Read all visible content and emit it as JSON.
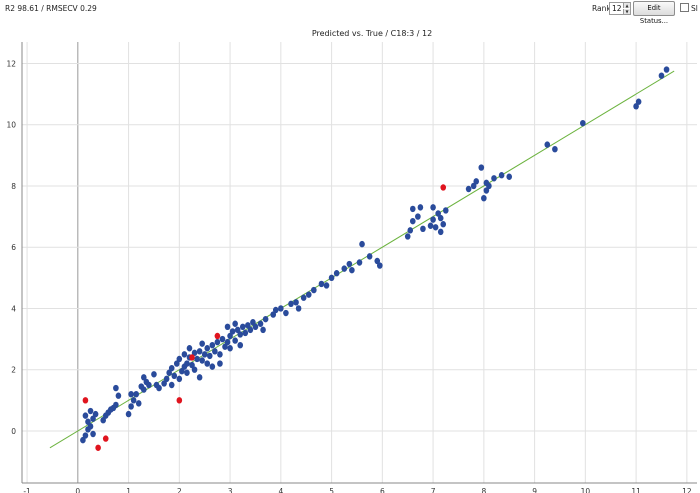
{
  "header": {
    "stats": "R2 98.61 / RMSECV 0.29",
    "rank_label": "Rank:",
    "rank_value": "12",
    "edit_button": "Edit Status...",
    "checkbox_label": "Sl"
  },
  "colors": {
    "blue": "#2a4b9b",
    "red": "#e0141e",
    "fit": "#6cb33f",
    "grid": "#e1e1e1",
    "axis": "#888888"
  },
  "chart_data": {
    "type": "scatter",
    "title": "Predicted vs. True / C18:3 / 12",
    "xlabel": "",
    "ylabel": "",
    "xlim": [
      -1.1,
      12.2
    ],
    "ylim": [
      -1.7,
      12.7
    ],
    "xticks": [
      -1,
      0,
      1,
      2,
      3,
      4,
      5,
      6,
      7,
      8,
      9,
      10,
      11,
      12
    ],
    "yticks": [
      0,
      2,
      4,
      6,
      8,
      10,
      12
    ],
    "grid": true,
    "fit_line": {
      "x": [
        -0.55,
        11.75
      ],
      "y": [
        -0.55,
        11.75
      ]
    },
    "series": [
      {
        "color_key": "blue",
        "points": [
          [
            0.1,
            -0.3
          ],
          [
            0.15,
            -0.15
          ],
          [
            0.2,
            0.05
          ],
          [
            0.25,
            0.15
          ],
          [
            0.2,
            0.3
          ],
          [
            0.3,
            0.4
          ],
          [
            0.35,
            0.55
          ],
          [
            0.25,
            0.65
          ],
          [
            0.15,
            0.5
          ],
          [
            0.3,
            -0.1
          ],
          [
            0.5,
            0.35
          ],
          [
            0.55,
            0.5
          ],
          [
            0.65,
            0.7
          ],
          [
            0.75,
            0.85
          ],
          [
            0.8,
            1.15
          ],
          [
            0.75,
            1.4
          ],
          [
            0.7,
            0.75
          ],
          [
            0.6,
            0.6
          ],
          [
            1.0,
            0.55
          ],
          [
            1.05,
            0.8
          ],
          [
            1.1,
            1.0
          ],
          [
            1.15,
            1.2
          ],
          [
            1.2,
            0.9
          ],
          [
            1.25,
            1.45
          ],
          [
            1.3,
            1.35
          ],
          [
            1.35,
            1.6
          ],
          [
            1.3,
            1.75
          ],
          [
            1.05,
            1.2
          ],
          [
            1.4,
            1.5
          ],
          [
            1.5,
            1.85
          ],
          [
            1.55,
            1.5
          ],
          [
            1.6,
            1.4
          ],
          [
            1.7,
            1.55
          ],
          [
            1.75,
            1.7
          ],
          [
            1.8,
            1.9
          ],
          [
            1.85,
            2.05
          ],
          [
            1.9,
            1.8
          ],
          [
            1.95,
            2.2
          ],
          [
            2.0,
            2.35
          ],
          [
            2.05,
            1.95
          ],
          [
            2.1,
            2.1
          ],
          [
            2.1,
            2.5
          ],
          [
            2.15,
            2.2
          ],
          [
            2.2,
            2.4
          ],
          [
            2.25,
            2.15
          ],
          [
            2.3,
            2.55
          ],
          [
            2.35,
            2.35
          ],
          [
            2.4,
            2.6
          ],
          [
            2.45,
            2.3
          ],
          [
            2.5,
            2.5
          ],
          [
            2.55,
            2.7
          ],
          [
            2.6,
            2.45
          ],
          [
            2.65,
            2.8
          ],
          [
            2.7,
            2.6
          ],
          [
            2.75,
            2.9
          ],
          [
            2.8,
            2.5
          ],
          [
            1.85,
            1.5
          ],
          [
            2.0,
            1.7
          ],
          [
            2.15,
            1.9
          ],
          [
            2.3,
            2.0
          ],
          [
            2.4,
            1.75
          ],
          [
            2.55,
            2.2
          ],
          [
            2.65,
            2.1
          ],
          [
            2.2,
            2.7
          ],
          [
            2.45,
            2.85
          ],
          [
            2.8,
            2.2
          ],
          [
            2.9,
            2.75
          ],
          [
            2.85,
            3.0
          ],
          [
            2.95,
            2.9
          ],
          [
            3.0,
            3.1
          ],
          [
            3.05,
            3.25
          ],
          [
            3.1,
            2.95
          ],
          [
            3.15,
            3.3
          ],
          [
            3.2,
            3.15
          ],
          [
            3.25,
            3.4
          ],
          [
            3.3,
            3.2
          ],
          [
            3.35,
            3.45
          ],
          [
            3.4,
            3.3
          ],
          [
            3.45,
            3.55
          ],
          [
            3.5,
            3.4
          ],
          [
            3.6,
            3.5
          ],
          [
            3.65,
            3.3
          ],
          [
            3.7,
            3.65
          ],
          [
            3.1,
            3.5
          ],
          [
            3.0,
            2.7
          ],
          [
            2.95,
            3.4
          ],
          [
            3.2,
            2.8
          ],
          [
            3.85,
            3.8
          ],
          [
            3.9,
            3.95
          ],
          [
            4.0,
            4.0
          ],
          [
            4.1,
            3.85
          ],
          [
            4.2,
            4.15
          ],
          [
            4.3,
            4.2
          ],
          [
            4.35,
            4.0
          ],
          [
            4.45,
            4.35
          ],
          [
            4.55,
            4.45
          ],
          [
            4.65,
            4.6
          ],
          [
            4.8,
            4.8
          ],
          [
            4.9,
            4.75
          ],
          [
            5.0,
            5.0
          ],
          [
            5.1,
            5.15
          ],
          [
            5.25,
            5.3
          ],
          [
            5.35,
            5.45
          ],
          [
            5.4,
            5.25
          ],
          [
            5.55,
            5.5
          ],
          [
            5.6,
            6.1
          ],
          [
            5.75,
            5.7
          ],
          [
            5.9,
            5.55
          ],
          [
            5.95,
            5.4
          ],
          [
            6.5,
            6.35
          ],
          [
            6.55,
            6.55
          ],
          [
            6.6,
            6.85
          ],
          [
            6.6,
            7.25
          ],
          [
            6.7,
            7.0
          ],
          [
            6.75,
            7.3
          ],
          [
            6.8,
            6.6
          ],
          [
            6.95,
            6.7
          ],
          [
            7.0,
            6.9
          ],
          [
            7.05,
            6.65
          ],
          [
            7.1,
            7.1
          ],
          [
            7.15,
            6.95
          ],
          [
            7.2,
            6.75
          ],
          [
            7.25,
            7.2
          ],
          [
            7.0,
            7.3
          ],
          [
            7.15,
            6.5
          ],
          [
            7.7,
            7.9
          ],
          [
            7.8,
            8.0
          ],
          [
            7.85,
            8.15
          ],
          [
            7.95,
            8.6
          ],
          [
            8.0,
            7.6
          ],
          [
            8.05,
            8.1
          ],
          [
            8.1,
            8.0
          ],
          [
            8.2,
            8.25
          ],
          [
            8.35,
            8.35
          ],
          [
            8.5,
            8.3
          ],
          [
            8.05,
            7.85
          ],
          [
            9.25,
            9.35
          ],
          [
            9.4,
            9.2
          ],
          [
            9.95,
            10.05
          ],
          [
            11.0,
            10.6
          ],
          [
            11.05,
            10.75
          ],
          [
            11.5,
            11.6
          ],
          [
            11.6,
            11.8
          ]
        ]
      },
      {
        "color_key": "red",
        "points": [
          [
            0.15,
            1.0
          ],
          [
            0.4,
            -0.55
          ],
          [
            0.55,
            -0.25
          ],
          [
            2.0,
            1.0
          ],
          [
            2.25,
            2.4
          ],
          [
            2.75,
            3.1
          ],
          [
            7.2,
            7.95
          ]
        ]
      }
    ]
  }
}
